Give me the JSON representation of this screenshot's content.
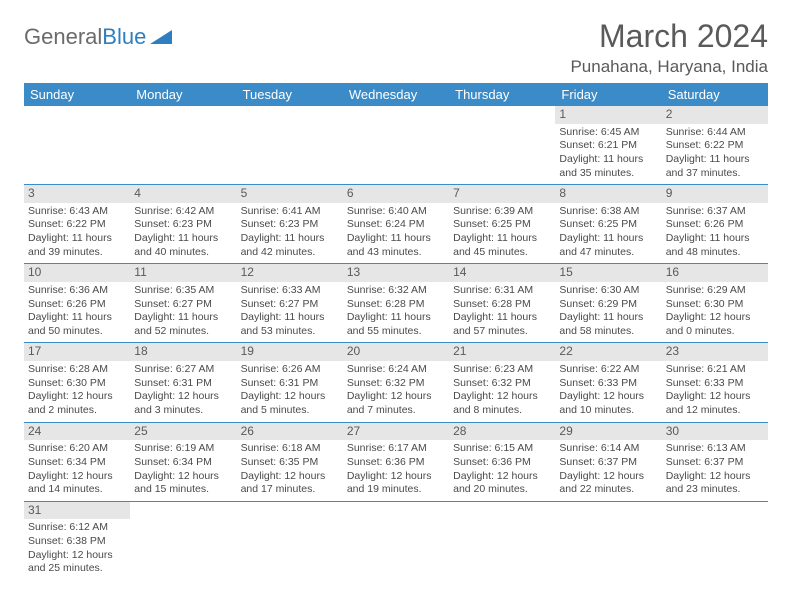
{
  "logo": {
    "text1": "General",
    "text2": "Blue",
    "triangle_color": "#2f7fc0"
  },
  "title": "March 2024",
  "location": "Punahana, Haryana, India",
  "colors": {
    "header_bg": "#3b8bc8",
    "header_text": "#ffffff",
    "daynum_bg": "#e6e6e6",
    "text": "#4a4a4a",
    "rule": "#3b8bc8"
  },
  "day_headers": [
    "Sunday",
    "Monday",
    "Tuesday",
    "Wednesday",
    "Thursday",
    "Friday",
    "Saturday"
  ],
  "weeks": [
    [
      {
        "n": "",
        "empty": true
      },
      {
        "n": "",
        "empty": true
      },
      {
        "n": "",
        "empty": true
      },
      {
        "n": "",
        "empty": true
      },
      {
        "n": "",
        "empty": true
      },
      {
        "n": "1",
        "sunrise": "6:45 AM",
        "sunset": "6:21 PM",
        "day_h": 11,
        "day_m": 35
      },
      {
        "n": "2",
        "sunrise": "6:44 AM",
        "sunset": "6:22 PM",
        "day_h": 11,
        "day_m": 37
      }
    ],
    [
      {
        "n": "3",
        "sunrise": "6:43 AM",
        "sunset": "6:22 PM",
        "day_h": 11,
        "day_m": 39
      },
      {
        "n": "4",
        "sunrise": "6:42 AM",
        "sunset": "6:23 PM",
        "day_h": 11,
        "day_m": 40
      },
      {
        "n": "5",
        "sunrise": "6:41 AM",
        "sunset": "6:23 PM",
        "day_h": 11,
        "day_m": 42
      },
      {
        "n": "6",
        "sunrise": "6:40 AM",
        "sunset": "6:24 PM",
        "day_h": 11,
        "day_m": 43
      },
      {
        "n": "7",
        "sunrise": "6:39 AM",
        "sunset": "6:25 PM",
        "day_h": 11,
        "day_m": 45
      },
      {
        "n": "8",
        "sunrise": "6:38 AM",
        "sunset": "6:25 PM",
        "day_h": 11,
        "day_m": 47
      },
      {
        "n": "9",
        "sunrise": "6:37 AM",
        "sunset": "6:26 PM",
        "day_h": 11,
        "day_m": 48
      }
    ],
    [
      {
        "n": "10",
        "sunrise": "6:36 AM",
        "sunset": "6:26 PM",
        "day_h": 11,
        "day_m": 50
      },
      {
        "n": "11",
        "sunrise": "6:35 AM",
        "sunset": "6:27 PM",
        "day_h": 11,
        "day_m": 52
      },
      {
        "n": "12",
        "sunrise": "6:33 AM",
        "sunset": "6:27 PM",
        "day_h": 11,
        "day_m": 53
      },
      {
        "n": "13",
        "sunrise": "6:32 AM",
        "sunset": "6:28 PM",
        "day_h": 11,
        "day_m": 55
      },
      {
        "n": "14",
        "sunrise": "6:31 AM",
        "sunset": "6:28 PM",
        "day_h": 11,
        "day_m": 57
      },
      {
        "n": "15",
        "sunrise": "6:30 AM",
        "sunset": "6:29 PM",
        "day_h": 11,
        "day_m": 58
      },
      {
        "n": "16",
        "sunrise": "6:29 AM",
        "sunset": "6:30 PM",
        "day_h": 12,
        "day_m": 0
      }
    ],
    [
      {
        "n": "17",
        "sunrise": "6:28 AM",
        "sunset": "6:30 PM",
        "day_h": 12,
        "day_m": 2
      },
      {
        "n": "18",
        "sunrise": "6:27 AM",
        "sunset": "6:31 PM",
        "day_h": 12,
        "day_m": 3
      },
      {
        "n": "19",
        "sunrise": "6:26 AM",
        "sunset": "6:31 PM",
        "day_h": 12,
        "day_m": 5
      },
      {
        "n": "20",
        "sunrise": "6:24 AM",
        "sunset": "6:32 PM",
        "day_h": 12,
        "day_m": 7
      },
      {
        "n": "21",
        "sunrise": "6:23 AM",
        "sunset": "6:32 PM",
        "day_h": 12,
        "day_m": 8
      },
      {
        "n": "22",
        "sunrise": "6:22 AM",
        "sunset": "6:33 PM",
        "day_h": 12,
        "day_m": 10
      },
      {
        "n": "23",
        "sunrise": "6:21 AM",
        "sunset": "6:33 PM",
        "day_h": 12,
        "day_m": 12
      }
    ],
    [
      {
        "n": "24",
        "sunrise": "6:20 AM",
        "sunset": "6:34 PM",
        "day_h": 12,
        "day_m": 14
      },
      {
        "n": "25",
        "sunrise": "6:19 AM",
        "sunset": "6:34 PM",
        "day_h": 12,
        "day_m": 15
      },
      {
        "n": "26",
        "sunrise": "6:18 AM",
        "sunset": "6:35 PM",
        "day_h": 12,
        "day_m": 17
      },
      {
        "n": "27",
        "sunrise": "6:17 AM",
        "sunset": "6:36 PM",
        "day_h": 12,
        "day_m": 19
      },
      {
        "n": "28",
        "sunrise": "6:15 AM",
        "sunset": "6:36 PM",
        "day_h": 12,
        "day_m": 20
      },
      {
        "n": "29",
        "sunrise": "6:14 AM",
        "sunset": "6:37 PM",
        "day_h": 12,
        "day_m": 22
      },
      {
        "n": "30",
        "sunrise": "6:13 AM",
        "sunset": "6:37 PM",
        "day_h": 12,
        "day_m": 23
      }
    ],
    [
      {
        "n": "31",
        "sunrise": "6:12 AM",
        "sunset": "6:38 PM",
        "day_h": 12,
        "day_m": 25
      },
      {
        "n": "",
        "empty": true
      },
      {
        "n": "",
        "empty": true
      },
      {
        "n": "",
        "empty": true
      },
      {
        "n": "",
        "empty": true
      },
      {
        "n": "",
        "empty": true
      },
      {
        "n": "",
        "empty": true
      }
    ]
  ]
}
